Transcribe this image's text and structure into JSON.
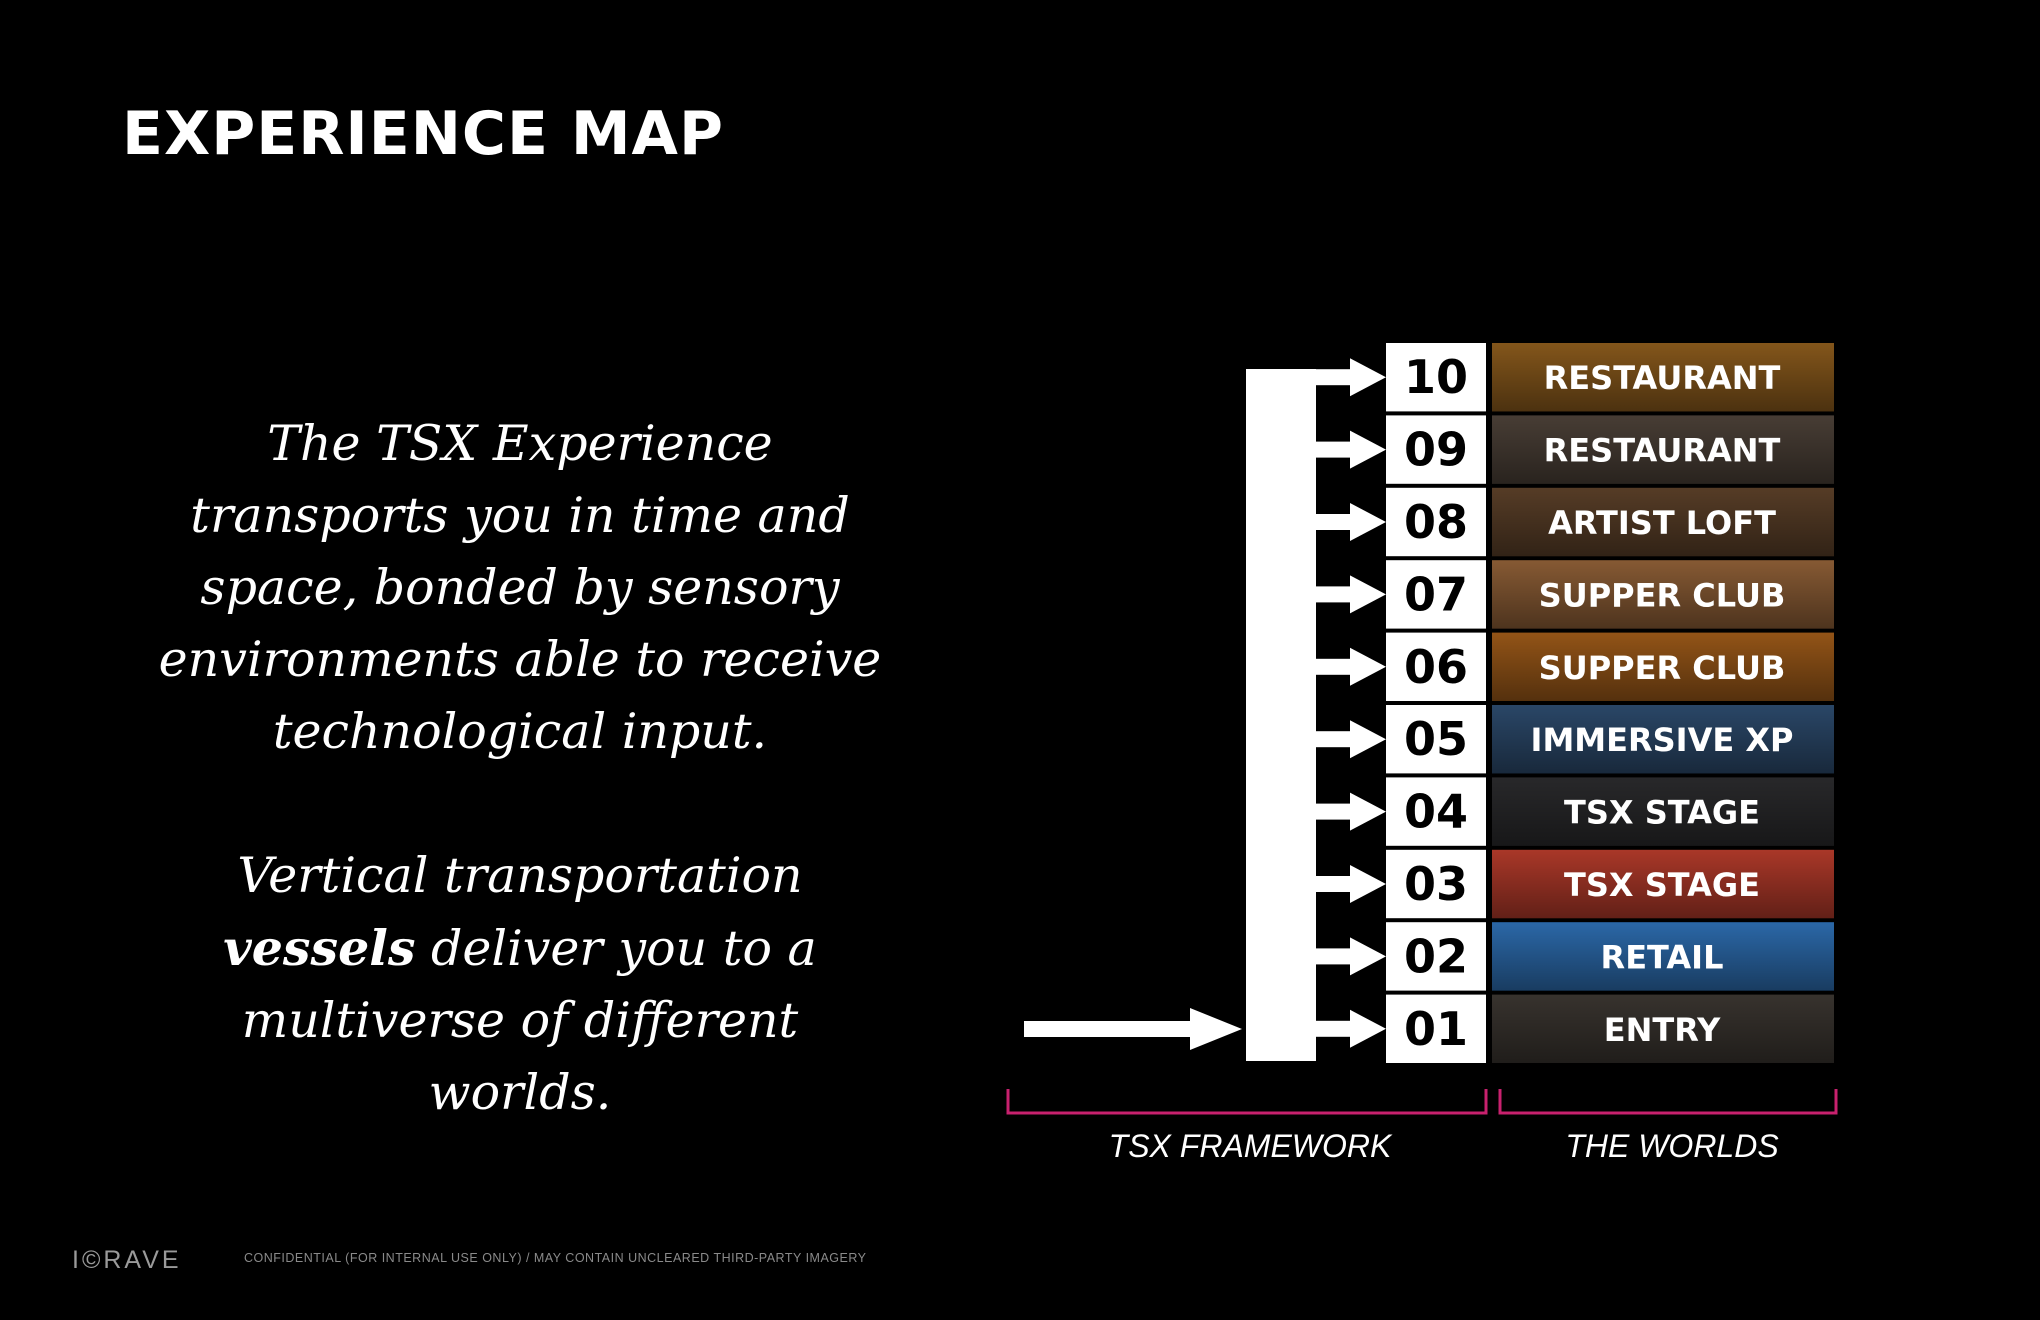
{
  "title": "EXPERIENCE MAP",
  "paragraphs": {
    "p1": "The TSX Experience transports you in time and space, bonded by sensory environments able to receive technological input.",
    "p2_before": "Vertical transportation ",
    "p2_bold": "vessels",
    "p2_after": " deliver you to a multiverse of different worlds."
  },
  "floors": [
    {
      "number": "10",
      "world": "RESTAURANT",
      "color": "#8a5a1c"
    },
    {
      "number": "09",
      "world": "RESTAURANT",
      "color": "#4b4037"
    },
    {
      "number": "08",
      "world": "ARTIST LOFT",
      "color": "#5a3f28"
    },
    {
      "number": "07",
      "world": "SUPPER CLUB",
      "color": "#8d5e36"
    },
    {
      "number": "06",
      "world": "SUPPER CLUB",
      "color": "#9a5818"
    },
    {
      "number": "05",
      "world": "IMMERSIVE XP",
      "color": "#2c4a6c"
    },
    {
      "number": "04",
      "world": "TSX STAGE",
      "color": "#2a2a2c"
    },
    {
      "number": "03",
      "world": "TSX STAGE",
      "color": "#b23a2a"
    },
    {
      "number": "02",
      "world": "RETAIL",
      "color": "#2d6db0"
    },
    {
      "number": "01",
      "world": "ENTRY",
      "color": "#3a3530"
    }
  ],
  "labels": {
    "framework": "TSX FRAMEWORK",
    "worlds": "THE WORLDS"
  },
  "colors": {
    "background": "#000000",
    "bracket": "#c8216e",
    "arrow": "#ffffff"
  },
  "logo": "I©RAVE",
  "footer": "CONFIDENTIAL (FOR INTERNAL USE ONLY) / MAY CONTAIN UNCLEARED THIRD-PARTY IMAGERY"
}
